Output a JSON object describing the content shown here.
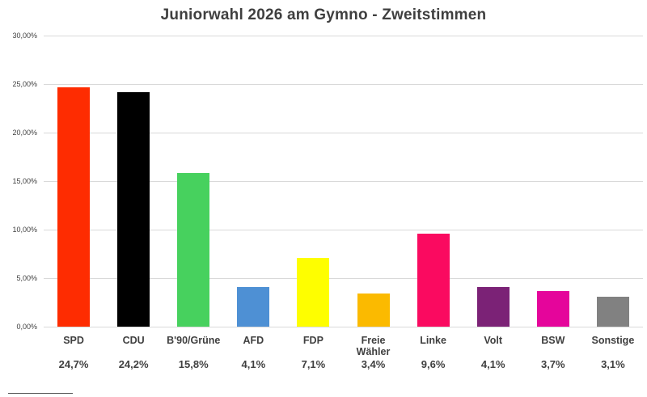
{
  "title": "Juniorwahl 2026 am Gymno - Zweitstimmen",
  "chart_data": {
    "type": "bar",
    "title": "Juniorwahl 2026 am Gymno - Zweitstimmen",
    "categories": [
      "SPD",
      "CDU",
      "B'90/Grüne",
      "AFD",
      "FDP",
      "Freie Wähler",
      "Linke",
      "Volt",
      "BSW",
      "Sonstige"
    ],
    "values": [
      24.7,
      24.2,
      15.8,
      4.1,
      7.1,
      3.4,
      9.6,
      4.1,
      3.7,
      3.1
    ],
    "value_labels": [
      "24,7%",
      "24,2%",
      "15,8%",
      "4,1%",
      "7,1%",
      "3,4%",
      "9,6%",
      "4,1%",
      "3,7%",
      "3,1%"
    ],
    "bar_colors": [
      "#fe2c01",
      "#000000",
      "#47d15e",
      "#4e90d4",
      "#fefe00",
      "#fbba00",
      "#fa0a60",
      "#7b2276",
      "#e5059b",
      "#818181"
    ],
    "xlabel": "",
    "ylabel": "",
    "ylim": [
      0,
      30
    ],
    "yticks": [
      0,
      5,
      10,
      15,
      20,
      25,
      30
    ],
    "ytick_labels": [
      "0,00%",
      "5,00%",
      "10,00%",
      "15,00%",
      "20,00%",
      "25,00%",
      "30,00%"
    ],
    "grid": true,
    "legend": false
  },
  "colors": {
    "grid": "#d9d9d9",
    "text": "#3f3f3f",
    "background": "#ffffff"
  }
}
